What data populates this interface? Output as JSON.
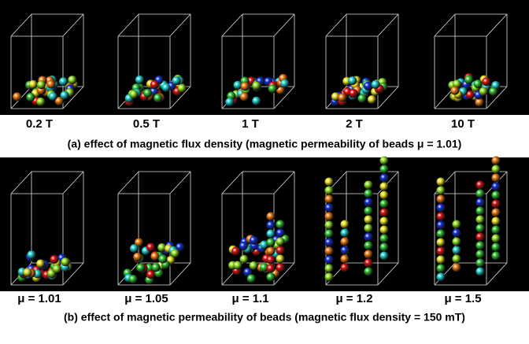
{
  "row_a": {
    "labels": [
      "0.2 T",
      "0.5 T",
      "1 T",
      "2 T",
      "10 T"
    ],
    "caption": "(a) effect of magnetic flux density (magnetic permeability of beads μ = 1.01)"
  },
  "row_b": {
    "labels": [
      "μ = 1.01",
      "μ = 1.05",
      "μ = 1.1",
      "μ = 1.2",
      "μ = 1.5"
    ],
    "caption": "(b) effect of magnetic permeability of beads (magnetic flux density = 150 mT)"
  }
}
